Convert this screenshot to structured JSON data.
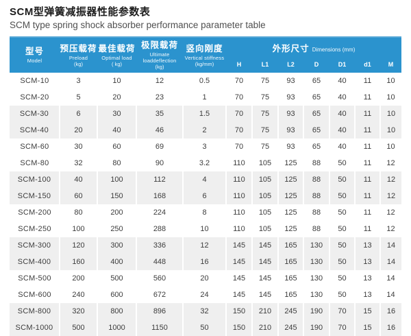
{
  "page": {
    "title_zh": "SCM型弹簧减振器性能参数表",
    "title_en": "SCM type spring shock absorber performance parameter table"
  },
  "colors": {
    "header_bg": "#2B93CE",
    "header_top_edge": "#57A8D6",
    "stripe_bg": "#EFEFEF",
    "body_text": "#3C3C3C"
  },
  "table": {
    "columns": [
      {
        "zh": "型号",
        "en": "Model",
        "unit": ""
      },
      {
        "zh": "预压载荷",
        "en": "Preload",
        "unit": "(kg)"
      },
      {
        "zh": "最佳载荷",
        "en": "Optimal load",
        "unit": "( kg)"
      },
      {
        "zh": "极限载荷",
        "en": "Ultimate loaddeflection",
        "unit": "(kg)"
      },
      {
        "zh": "竖向刚度",
        "en": "Vertical stiffness",
        "unit": "(kg/mm)"
      }
    ],
    "dimensions_header": {
      "zh": "外形尺寸",
      "en": "Dimensions (mm)"
    },
    "dimension_columns": [
      "H",
      "L1",
      "L2",
      "D",
      "D1",
      "d1",
      "M"
    ],
    "rows": [
      [
        "SCM-10",
        "3",
        "10",
        "12",
        "0.5",
        "70",
        "75",
        "93",
        "65",
        "40",
        "11",
        "10"
      ],
      [
        "SCM-20",
        "5",
        "20",
        "23",
        "1",
        "70",
        "75",
        "93",
        "65",
        "40",
        "11",
        "10"
      ],
      [
        "SCM-30",
        "6",
        "30",
        "35",
        "1.5",
        "70",
        "75",
        "93",
        "65",
        "40",
        "11",
        "10"
      ],
      [
        "SCM-40",
        "20",
        "40",
        "46",
        "2",
        "70",
        "75",
        "93",
        "65",
        "40",
        "11",
        "10"
      ],
      [
        "SCM-60",
        "30",
        "60",
        "69",
        "3",
        "70",
        "75",
        "93",
        "65",
        "40",
        "11",
        "10"
      ],
      [
        "SCM-80",
        "32",
        "80",
        "90",
        "3.2",
        "110",
        "105",
        "125",
        "88",
        "50",
        "11",
        "12"
      ],
      [
        "SCM-100",
        "40",
        "100",
        "112",
        "4",
        "110",
        "105",
        "125",
        "88",
        "50",
        "11",
        "12"
      ],
      [
        "SCM-150",
        "60",
        "150",
        "168",
        "6",
        "110",
        "105",
        "125",
        "88",
        "50",
        "11",
        "12"
      ],
      [
        "SCM-200",
        "80",
        "200",
        "224",
        "8",
        "110",
        "105",
        "125",
        "88",
        "50",
        "11",
        "12"
      ],
      [
        "SCM-250",
        "100",
        "250",
        "288",
        "10",
        "110",
        "105",
        "125",
        "88",
        "50",
        "11",
        "12"
      ],
      [
        "SCM-300",
        "120",
        "300",
        "336",
        "12",
        "145",
        "145",
        "165",
        "130",
        "50",
        "13",
        "14"
      ],
      [
        "SCM-400",
        "160",
        "400",
        "448",
        "16",
        "145",
        "145",
        "165",
        "130",
        "50",
        "13",
        "14"
      ],
      [
        "SCM-500",
        "200",
        "500",
        "560",
        "20",
        "145",
        "145",
        "165",
        "130",
        "50",
        "13",
        "14"
      ],
      [
        "SCM-600",
        "240",
        "600",
        "672",
        "24",
        "145",
        "145",
        "165",
        "130",
        "50",
        "13",
        "14"
      ],
      [
        "SCM-800",
        "320",
        "800",
        "896",
        "32",
        "150",
        "210",
        "245",
        "190",
        "70",
        "15",
        "16"
      ],
      [
        "SCM-1000",
        "500",
        "1000",
        "1150",
        "50",
        "150",
        "210",
        "245",
        "190",
        "70",
        "15",
        "16"
      ]
    ]
  }
}
